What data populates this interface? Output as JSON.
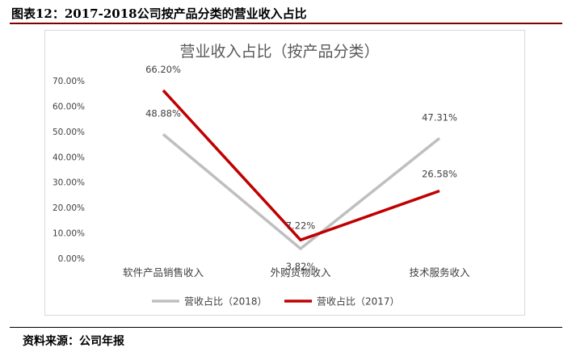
{
  "figure": {
    "title": "图表12：2017-2018公司按产品分类的营业收入占比",
    "source": "资料来源：公司年报"
  },
  "chart_data": {
    "type": "line",
    "title": "营业收入占比（按产品分类）",
    "xlabel": "",
    "ylabel": "",
    "categories": [
      "软件产品销售收入",
      "外购货物收入",
      "技术服务收入"
    ],
    "ylim": [
      0,
      70
    ],
    "yticks": [
      "0.00%",
      "10.00%",
      "20.00%",
      "30.00%",
      "40.00%",
      "50.00%",
      "60.00%",
      "70.00%"
    ],
    "grid": false,
    "legend_position": "bottom",
    "series": [
      {
        "name": "营收占比（2018）",
        "color": "#bfbfbf",
        "values": [
          48.88,
          3.82,
          47.31
        ],
        "labels": [
          "48.88%",
          "3.82%",
          "47.31%"
        ]
      },
      {
        "name": "营收占比（2017）",
        "color": "#c00000",
        "values": [
          66.2,
          7.22,
          26.58
        ],
        "labels": [
          "66.20%",
          "7.22%",
          "26.58%"
        ]
      }
    ]
  }
}
